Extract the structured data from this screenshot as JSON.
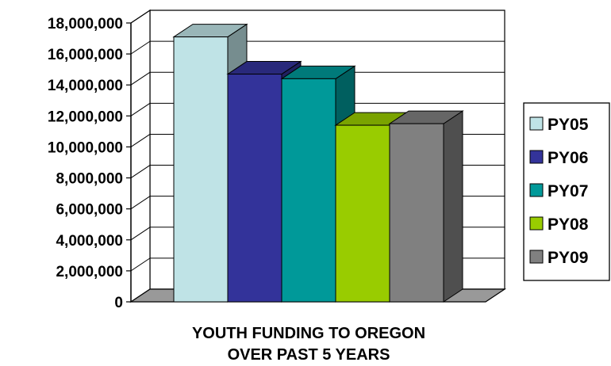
{
  "chart_data": {
    "type": "bar",
    "style": "3d",
    "categories": [
      "PY05",
      "PY06",
      "PY07",
      "PY08",
      "PY09"
    ],
    "values": [
      17100000,
      14700000,
      14400000,
      11400000,
      11500000
    ],
    "xlabel_lines": [
      "YOUTH FUNDING TO OREGON",
      "OVER PAST 5 YEARS"
    ],
    "ylabel": "",
    "ylim": [
      0,
      18000000
    ],
    "yticks": [
      0,
      2000000,
      4000000,
      6000000,
      8000000,
      10000000,
      12000000,
      14000000,
      16000000,
      18000000
    ],
    "ytick_labels": [
      "0",
      "2,000,000",
      "4,000,000",
      "6,000,000",
      "8,000,000",
      "10,000,000",
      "12,000,000",
      "14,000,000",
      "16,000,000",
      "18,000,000"
    ],
    "grid": true,
    "legend": {
      "position": "right",
      "entries": [
        "PY05",
        "PY06",
        "PY07",
        "PY08",
        "PY09"
      ]
    },
    "colors": [
      "#bfe3e6",
      "#33339a",
      "#009999",
      "#99cc00",
      "#808080"
    ]
  }
}
